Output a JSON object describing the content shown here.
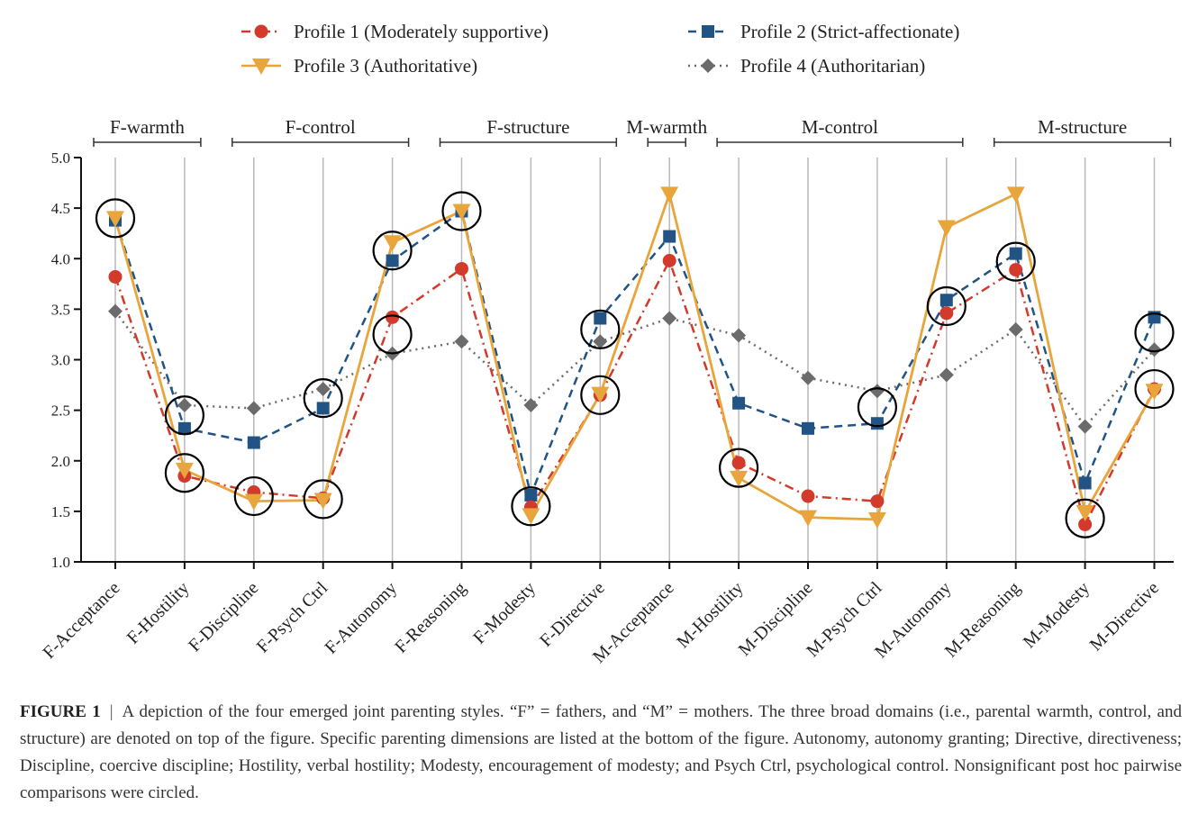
{
  "chart_data": {
    "type": "line",
    "ylim": [
      1.0,
      5.0
    ],
    "yticks": [
      "1.0",
      "1.5",
      "2.0",
      "2.5",
      "3.0",
      "3.5",
      "4.0",
      "4.5",
      "5.0"
    ],
    "categories": [
      "F-Acceptance",
      "F-Hostility",
      "F-Discipline",
      "F-Psych Ctrl",
      "F-Autonomy",
      "F-Reasoning",
      "F-Modesty",
      "F-Directive",
      "M-Acceptance",
      "M-Hostility",
      "M-Discipline",
      "M-Psych Ctrl",
      "M-Autonomy",
      "M-Reasoning",
      "M-Modesty",
      "M-Directive"
    ],
    "domains": [
      {
        "label": "F-warmth",
        "from": 0,
        "to": 1
      },
      {
        "label": "F-control",
        "from": 2,
        "to": 4
      },
      {
        "label": "F-structure",
        "from": 5,
        "to": 7
      },
      {
        "label": "M-warmth",
        "from": 8,
        "to": 8
      },
      {
        "label": "M-control",
        "from": 9,
        "to": 12
      },
      {
        "label": "M-structure",
        "from": 13,
        "to": 15
      }
    ],
    "series": [
      {
        "name": "Profile 1 (Moderately supportive)",
        "color": "#d23a2b",
        "marker": "circle",
        "dash": "dashdot",
        "values": [
          3.82,
          1.85,
          1.69,
          1.63,
          3.42,
          3.9,
          1.54,
          2.65,
          3.98,
          1.98,
          1.65,
          1.6,
          3.46,
          3.89,
          1.37,
          2.71
        ]
      },
      {
        "name": "Profile 2 (Strict-affectionate)",
        "color": "#215484",
        "marker": "square",
        "dash": "dashed",
        "values": [
          4.38,
          2.32,
          2.18,
          2.52,
          3.98,
          4.47,
          1.66,
          3.41,
          4.22,
          2.57,
          2.32,
          2.37,
          3.59,
          4.05,
          1.78,
          3.42
        ]
      },
      {
        "name": "Profile 3 (Authoritative)",
        "color": "#e8a53c",
        "marker": "triangle-down",
        "dash": "solid",
        "values": [
          4.4,
          1.91,
          1.6,
          1.61,
          4.16,
          4.47,
          1.46,
          2.66,
          4.64,
          1.83,
          1.44,
          1.42,
          4.31,
          4.64,
          1.49,
          2.69
        ]
      },
      {
        "name": "Profile 4 (Authoritarian)",
        "color": "#6b6b6b",
        "marker": "diamond",
        "dash": "dotted",
        "values": [
          3.48,
          2.55,
          2.52,
          2.71,
          3.06,
          3.18,
          2.55,
          3.18,
          3.41,
          3.24,
          2.82,
          2.69,
          2.85,
          3.3,
          2.34,
          3.1
        ]
      }
    ],
    "circled_annotations": [
      {
        "category_index": 0,
        "value": 4.4
      },
      {
        "category_index": 1,
        "value": 2.45
      },
      {
        "category_index": 1,
        "value": 1.88
      },
      {
        "category_index": 2,
        "value": 1.65
      },
      {
        "category_index": 3,
        "value": 1.62
      },
      {
        "category_index": 3,
        "value": 2.62
      },
      {
        "category_index": 4,
        "value": 4.08
      },
      {
        "category_index": 4,
        "value": 3.25
      },
      {
        "category_index": 5,
        "value": 4.47
      },
      {
        "category_index": 6,
        "value": 1.55
      },
      {
        "category_index": 7,
        "value": 3.3
      },
      {
        "category_index": 7,
        "value": 2.65
      },
      {
        "category_index": 9,
        "value": 1.93
      },
      {
        "category_index": 11,
        "value": 2.53
      },
      {
        "category_index": 12,
        "value": 3.53
      },
      {
        "category_index": 13,
        "value": 3.97
      },
      {
        "category_index": 14,
        "value": 1.43
      },
      {
        "category_index": 15,
        "value": 3.27
      },
      {
        "category_index": 15,
        "value": 2.71
      }
    ],
    "grid": "vertical",
    "legend_position": "top"
  },
  "caption": {
    "label": "FIGURE 1",
    "separator": "|",
    "text": "A depiction of the four emerged joint parenting styles. “F” = fathers, and “M” = mothers. The three broad domains (i.e., parental warmth, control, and structure) are denoted on top of the figure. Specific parenting dimensions are listed at the bottom of the figure. Autonomy, autonomy granting; Directive, directiveness; Discipline, coercive discipline; Hostility, verbal hostility; Modesty, encouragement of modesty; and Psych Ctrl, psychological control. Nonsignificant post hoc pairwise comparisons were circled."
  }
}
